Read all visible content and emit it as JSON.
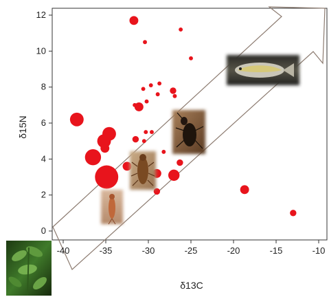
{
  "chart_data": {
    "type": "scatter",
    "title": "",
    "xlabel": "δ13C",
    "ylabel": "δ15N",
    "xlim": [
      -41.5,
      -9.5
    ],
    "ylim": [
      -0.5,
      12.5
    ],
    "xticks": [
      -40,
      -35,
      -30,
      -25,
      -20,
      -15,
      -10
    ],
    "xtick_labels": [
      "-40",
      "-35",
      "-30",
      "-25",
      "-20",
      "-15",
      "-10"
    ],
    "yticks": [
      0,
      2,
      4,
      6,
      8,
      10,
      12
    ],
    "ytick_labels": [
      "0",
      "2",
      "4",
      "6",
      "8",
      "10",
      "12"
    ],
    "grid": false,
    "marker_color": "#e8141c",
    "points": [
      {
        "x": -31.7,
        "y": 11.7,
        "size": 3
      },
      {
        "x": -26.2,
        "y": 11.2,
        "size": 1
      },
      {
        "x": -30.4,
        "y": 10.5,
        "size": 1
      },
      {
        "x": -38.4,
        "y": 6.2,
        "size": 5
      },
      {
        "x": -34.6,
        "y": 5.4,
        "size": 5
      },
      {
        "x": -35.2,
        "y": 5.0,
        "size": 5
      },
      {
        "x": -35.1,
        "y": 4.6,
        "size": 3
      },
      {
        "x": -36.5,
        "y": 4.1,
        "size": 6
      },
      {
        "x": -34.9,
        "y": 3.0,
        "size": 9
      },
      {
        "x": -32.5,
        "y": 3.6,
        "size": 3
      },
      {
        "x": -31.5,
        "y": 5.1,
        "size": 2
      },
      {
        "x": -31.1,
        "y": 6.9,
        "size": 3
      },
      {
        "x": -31.6,
        "y": 7.0,
        "size": 1
      },
      {
        "x": -30.2,
        "y": 7.2,
        "size": 1
      },
      {
        "x": -29.7,
        "y": 8.1,
        "size": 1
      },
      {
        "x": -28.7,
        "y": 8.2,
        "size": 1
      },
      {
        "x": -30.6,
        "y": 7.9,
        "size": 1
      },
      {
        "x": -28.9,
        "y": 7.6,
        "size": 1
      },
      {
        "x": -27.1,
        "y": 7.8,
        "size": 2
      },
      {
        "x": -26.9,
        "y": 7.5,
        "size": 1
      },
      {
        "x": -30.3,
        "y": 5.5,
        "size": 1
      },
      {
        "x": -29.6,
        "y": 5.5,
        "size": 1
      },
      {
        "x": -30.5,
        "y": 5.0,
        "size": 1
      },
      {
        "x": -28.2,
        "y": 4.4,
        "size": 1
      },
      {
        "x": -31.4,
        "y": 4.1,
        "size": 1
      },
      {
        "x": -29.0,
        "y": 3.2,
        "size": 3
      },
      {
        "x": -29.0,
        "y": 2.2,
        "size": 2
      },
      {
        "x": -27.0,
        "y": 3.1,
        "size": 4
      },
      {
        "x": -26.3,
        "y": 3.8,
        "size": 2
      },
      {
        "x": -25.0,
        "y": 9.6,
        "size": 1
      },
      {
        "x": -18.7,
        "y": 2.3,
        "size": 3
      },
      {
        "x": -13.0,
        "y": 1.0,
        "size": 2
      }
    ],
    "annotations": [
      {
        "kind": "trend-arrow",
        "description": "outlined arrow pointing from bottom-left to top-right"
      },
      {
        "kind": "image",
        "name": "plant-photo"
      },
      {
        "kind": "image",
        "name": "mayfly-larva-photo"
      },
      {
        "kind": "image",
        "name": "stonefly-nymph-photo"
      },
      {
        "kind": "image",
        "name": "beetle-photo"
      },
      {
        "kind": "image",
        "name": "fish-photo"
      }
    ]
  }
}
